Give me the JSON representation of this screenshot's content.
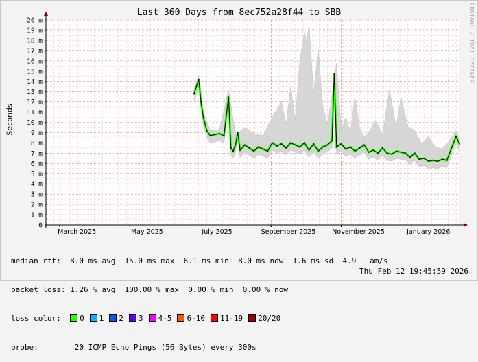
{
  "chart_data": {
    "type": "area",
    "title": "Last 360 Days from 8ec752a28f44 to SBB",
    "ylabel": "Seconds",
    "y_unit": "m",
    "ylim": [
      0,
      20
    ],
    "y_ticks": [
      "0",
      "1 m",
      "2 m",
      "3 m",
      "4 m",
      "5 m",
      "6 m",
      "7 m",
      "8 m",
      "9 m",
      "10 m",
      "11 m",
      "12 m",
      "13 m",
      "14 m",
      "15 m",
      "16 m",
      "17 m",
      "18 m",
      "19 m",
      "20 m"
    ],
    "x_tick_labels": [
      "March 2025",
      "May 2025",
      "July 2025",
      "September 2025",
      "November 2025",
      "January 2026"
    ],
    "x_start": "2025-02-17",
    "x_end": "2026-02-12",
    "grid": true,
    "series": [
      {
        "name": "median rtt",
        "x": [
          "2025-06-26",
          "2025-06-28",
          "2025-06-30",
          "2025-07-02",
          "2025-07-04",
          "2025-07-07",
          "2025-07-10",
          "2025-07-14",
          "2025-07-18",
          "2025-07-22",
          "2025-07-26",
          "2025-07-28",
          "2025-07-30",
          "2025-08-01",
          "2025-08-03",
          "2025-08-05",
          "2025-08-09",
          "2025-08-13",
          "2025-08-17",
          "2025-08-21",
          "2025-08-25",
          "2025-08-29",
          "2025-09-02",
          "2025-09-06",
          "2025-09-10",
          "2025-09-14",
          "2025-09-18",
          "2025-09-22",
          "2025-09-26",
          "2025-09-30",
          "2025-10-04",
          "2025-10-08",
          "2025-10-12",
          "2025-10-16",
          "2025-10-20",
          "2025-10-24",
          "2025-10-26",
          "2025-10-28",
          "2025-11-01",
          "2025-11-05",
          "2025-11-09",
          "2025-11-13",
          "2025-11-17",
          "2025-11-21",
          "2025-11-25",
          "2025-11-29",
          "2025-12-03",
          "2025-12-07",
          "2025-12-11",
          "2025-12-15",
          "2025-12-19",
          "2025-12-23",
          "2025-12-27",
          "2025-12-31",
          "2026-01-04",
          "2026-01-08",
          "2026-01-12",
          "2026-01-16",
          "2026-01-20",
          "2026-01-24",
          "2026-01-28",
          "2026-02-01",
          "2026-02-05",
          "2026-02-09",
          "2026-02-12"
        ],
        "y": [
          12.8,
          13.5,
          14.2,
          12.0,
          10.5,
          9.2,
          8.7,
          8.8,
          8.9,
          8.7,
          12.5,
          7.5,
          7.2,
          7.8,
          9.0,
          7.3,
          7.8,
          7.5,
          7.2,
          7.6,
          7.4,
          7.2,
          8.0,
          7.7,
          7.9,
          7.5,
          8.0,
          7.8,
          7.6,
          8.0,
          7.3,
          7.9,
          7.2,
          7.6,
          7.8,
          8.2,
          14.8,
          7.6,
          7.9,
          7.4,
          7.6,
          7.2,
          7.5,
          7.8,
          7.1,
          7.3,
          7.0,
          7.5,
          7.0,
          6.9,
          7.2,
          7.1,
          7.0,
          6.6,
          7.0,
          6.4,
          6.5,
          6.2,
          6.3,
          6.2,
          6.4,
          6.3,
          7.5,
          8.6,
          7.9
        ]
      },
      {
        "name": "max rtt",
        "x": [
          "2025-06-26",
          "2025-06-30",
          "2025-07-04",
          "2025-07-10",
          "2025-07-18",
          "2025-07-26",
          "2025-08-01",
          "2025-08-09",
          "2025-08-17",
          "2025-08-25",
          "2025-09-02",
          "2025-09-10",
          "2025-09-14",
          "2025-09-18",
          "2025-09-22",
          "2025-09-26",
          "2025-09-30",
          "2025-10-02",
          "2025-10-04",
          "2025-10-08",
          "2025-10-12",
          "2025-10-16",
          "2025-10-20",
          "2025-10-24",
          "2025-10-28",
          "2025-11-01",
          "2025-11-05",
          "2025-11-09",
          "2025-11-13",
          "2025-11-17",
          "2025-11-21",
          "2025-11-25",
          "2025-12-01",
          "2025-12-07",
          "2025-12-13",
          "2025-12-19",
          "2025-12-23",
          "2025-12-29",
          "2026-01-04",
          "2026-01-10",
          "2026-01-16",
          "2026-01-22",
          "2026-01-28",
          "2026-02-03",
          "2026-02-09",
          "2026-02-12"
        ],
        "y": [
          13.2,
          14.6,
          11.0,
          9.2,
          9.3,
          13.2,
          8.8,
          9.5,
          8.9,
          8.7,
          10.5,
          12.0,
          9.8,
          13.5,
          10.2,
          16.0,
          18.8,
          17.8,
          19.5,
          12.8,
          17.2,
          11.5,
          9.8,
          12.5,
          15.8,
          9.2,
          10.5,
          9.0,
          12.5,
          9.5,
          8.6,
          9.0,
          10.2,
          8.7,
          13.2,
          9.5,
          12.5,
          9.6,
          9.2,
          7.9,
          8.6,
          7.6,
          7.4,
          8.2,
          9.2,
          8.5
        ]
      }
    ]
  },
  "stats": {
    "median_rtt": "median rtt:  8.0 ms avg  15.0 ms max  6.1 ms min  8.0 ms now  1.6 ms sd  4.9   am/s",
    "packet_loss": "packet loss: 1.26 % avg  100.00 % max  0.00 % min  0.00 % now"
  },
  "loss_color": {
    "label": "loss color:",
    "items": [
      {
        "label": "0",
        "color": "#26ff00"
      },
      {
        "label": "1",
        "color": "#00b8ff"
      },
      {
        "label": "2",
        "color": "#0059ff"
      },
      {
        "label": "3",
        "color": "#5e00ff"
      },
      {
        "label": "4-5",
        "color": "#ff00ff"
      },
      {
        "label": "6-10",
        "color": "#ff5500"
      },
      {
        "label": "11-19",
        "color": "#ff0000"
      },
      {
        "label": "20/20",
        "color": "#a10000"
      }
    ]
  },
  "probe": {
    "label": "probe:",
    "text": "20 ICMP Echo Pings (56 Bytes) every 300s",
    "date": "Thu Feb 12 19:45:59 2026"
  },
  "watermark": "RRDTOOL / TOBI OETIKER",
  "colors": {
    "background": "#f3f3f3",
    "plot": "#ffffff",
    "grid_minor": "#ffbebe",
    "grid_major": "#dd8080",
    "smoke": "#d6d6d6",
    "median": "#000000",
    "axis": "#000000",
    "arrow": "#800000"
  }
}
